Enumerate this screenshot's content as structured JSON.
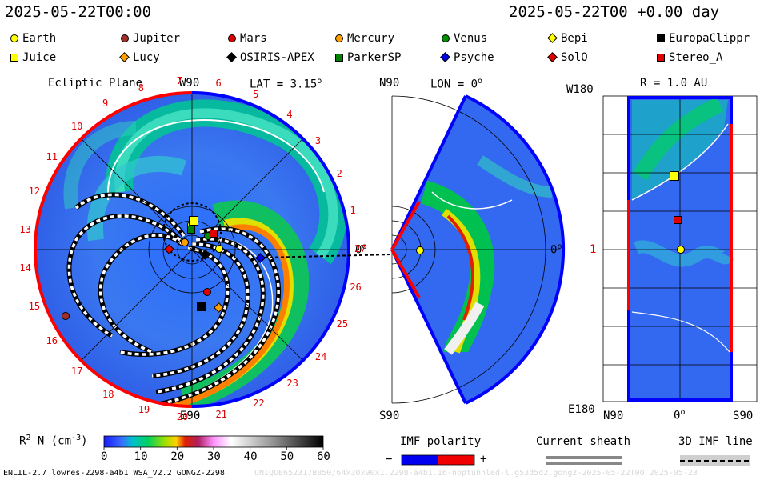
{
  "header": {
    "date_left": "2025-05-22T00:00",
    "date_right": "2025-05-22T00 +0.00 day"
  },
  "legend": [
    {
      "label": "Earth",
      "shape": "circle",
      "color": "#ffff00"
    },
    {
      "label": "Jupiter",
      "shape": "circle",
      "color": "#a0302a"
    },
    {
      "label": "Mars",
      "shape": "circle",
      "color": "#e00000"
    },
    {
      "label": "Mercury",
      "shape": "circle",
      "color": "#ffa000"
    },
    {
      "label": "Venus",
      "shape": "circle",
      "color": "#009000"
    },
    {
      "label": "Bepi",
      "shape": "diamond",
      "color": "#ffff00"
    },
    {
      "label": "EuropaClippr",
      "shape": "square",
      "color": "#000000"
    },
    {
      "label": "Juice",
      "shape": "square",
      "color": "#ffff00"
    },
    {
      "label": "Lucy",
      "shape": "diamond",
      "color": "#ffa000"
    },
    {
      "label": "OSIRIS-APEX",
      "shape": "diamond",
      "color": "#000000"
    },
    {
      "label": "ParkerSP",
      "shape": "square",
      "color": "#008000"
    },
    {
      "label": "Psyche",
      "shape": "diamond",
      "color": "#0000e0"
    },
    {
      "label": "SolO",
      "shape": "diamond",
      "color": "#e00000"
    },
    {
      "label": "Stereo_A",
      "shape": "square",
      "color": "#e00000"
    }
  ],
  "panels": {
    "ecliptic": {
      "title": "Ecliptic Plane",
      "top": "W90",
      "lat": "LAT = 3.15",
      "bottom": "E90",
      "zero": "0",
      "lat_deg": "o"
    },
    "meridional": {
      "top": "N90",
      "lon": "LON = 0",
      "bottom": "S90",
      "right": "0",
      "lon_deg": "o"
    },
    "radial": {
      "top": "W180",
      "r": "R = 1.0 AU",
      "bottom": "E180",
      "left": "1",
      "n90": "N90",
      "zero": "0",
      "s90": "S90",
      "deg": "o"
    }
  },
  "clock_labels": [
    "1",
    "2",
    "3",
    "4",
    "5",
    "6",
    "7",
    "8",
    "9",
    "10",
    "11",
    "12",
    "13",
    "14",
    "15",
    "16",
    "17",
    "18",
    "19",
    "20",
    "21",
    "22",
    "23",
    "24",
    "25",
    "26",
    "27"
  ],
  "colorbar": {
    "label_main": "R",
    "label_exp": "2",
    "label_rest": " N (cm",
    "label_exp2": "-3",
    "label_close": ")",
    "ticks": [
      "0",
      "10",
      "20",
      "30",
      "40",
      "50",
      "60"
    ]
  },
  "imf_polarity": {
    "title": "IMF polarity",
    "minus": "−",
    "plus": "+",
    "neg_color": "#0000f0",
    "pos_color": "#f00000"
  },
  "current_sheath": {
    "title": "Current sheath"
  },
  "imf_line": {
    "title": "3D IMF line"
  },
  "footer": {
    "left": "ENLIL-2.7 lowres-2298-a4b1 WSA_V2.2 GONGZ-2298",
    "right": "UNIQUE652317BB50/64x30x90x1.2298-a4b1.16-noptunnled-l.g53d5d2.gongz-2025-05-22T00  2025-05-23"
  },
  "chart_data": [
    {
      "type": "heatmap",
      "title": "Ecliptic Plane",
      "subtitle": "LAT = 3.15°",
      "axes": [
        "W90",
        "E90"
      ],
      "quantity": "R² N (cm⁻³)",
      "range": [
        0,
        60
      ]
    },
    {
      "type": "heatmap",
      "title": "",
      "subtitle": "LON = 0°",
      "axes": [
        "N90",
        "S90"
      ],
      "quantity": "R² N (cm⁻³)",
      "range": [
        0,
        60
      ]
    },
    {
      "type": "heatmap",
      "title": "",
      "subtitle": "R = 1.0 AU",
      "axes": [
        "W180",
        "E180",
        "N90",
        "S90"
      ],
      "quantity": "R² N (cm⁻³)",
      "range": [
        0,
        60
      ]
    }
  ]
}
